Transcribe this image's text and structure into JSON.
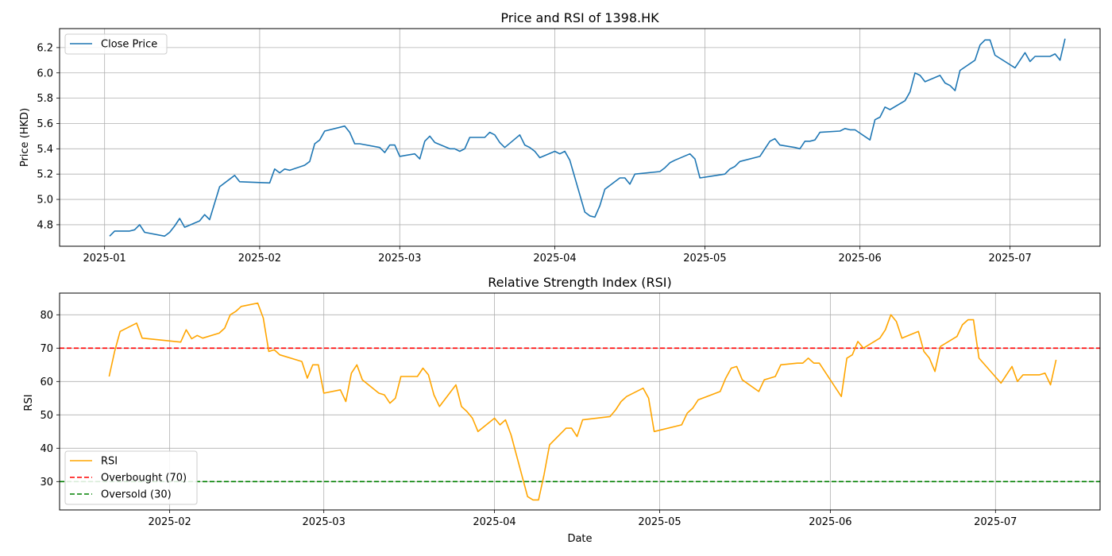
{
  "chart_data": [
    {
      "type": "line",
      "title": "Price and RSI of 1398.HK",
      "xlabel": "",
      "ylabel": "Price (HKD)",
      "ylim": [
        4.63,
        6.35
      ],
      "xlim": [
        "2024-12-23",
        "2025-07-19"
      ],
      "y_ticks": [
        "4.8",
        "5.0",
        "5.2",
        "5.4",
        "5.6",
        "5.8",
        "6.0",
        "6.2"
      ],
      "x_ticks": [
        "2025-01",
        "2025-02",
        "2025-03",
        "2025-04",
        "2025-05",
        "2025-06",
        "2025-07"
      ],
      "grid": true,
      "legend_position": "upper-left",
      "legend": [
        "Close Price"
      ],
      "series": [
        {
          "name": "Close Price",
          "color": "#1f77b4",
          "points": [
            [
              "2025-01-02",
              4.71
            ],
            [
              "2025-01-03",
              4.75
            ],
            [
              "2025-01-06",
              4.75
            ],
            [
              "2025-01-07",
              4.76
            ],
            [
              "2025-01-08",
              4.8
            ],
            [
              "2025-01-09",
              4.74
            ],
            [
              "2025-01-13",
              4.71
            ],
            [
              "2025-01-14",
              4.74
            ],
            [
              "2025-01-15",
              4.79
            ],
            [
              "2025-01-16",
              4.85
            ],
            [
              "2025-01-17",
              4.78
            ],
            [
              "2025-01-20",
              4.83
            ],
            [
              "2025-01-21",
              4.88
            ],
            [
              "2025-01-22",
              4.84
            ],
            [
              "2025-01-24",
              5.1
            ],
            [
              "2025-01-27",
              5.19
            ],
            [
              "2025-01-28",
              5.14
            ],
            [
              "2025-02-03",
              5.13
            ],
            [
              "2025-02-04",
              5.24
            ],
            [
              "2025-02-05",
              5.21
            ],
            [
              "2025-02-06",
              5.24
            ],
            [
              "2025-02-07",
              5.23
            ],
            [
              "2025-02-10",
              5.27
            ],
            [
              "2025-02-11",
              5.3
            ],
            [
              "2025-02-12",
              5.44
            ],
            [
              "2025-02-13",
              5.47
            ],
            [
              "2025-02-14",
              5.54
            ],
            [
              "2025-02-17",
              5.57
            ],
            [
              "2025-02-18",
              5.58
            ],
            [
              "2025-02-19",
              5.53
            ],
            [
              "2025-02-20",
              5.44
            ],
            [
              "2025-02-21",
              5.44
            ],
            [
              "2025-02-25",
              5.41
            ],
            [
              "2025-02-26",
              5.37
            ],
            [
              "2025-02-27",
              5.43
            ],
            [
              "2025-02-28",
              5.43
            ],
            [
              "2025-03-01",
              5.34
            ],
            [
              "2025-03-04",
              5.36
            ],
            [
              "2025-03-05",
              5.32
            ],
            [
              "2025-03-06",
              5.46
            ],
            [
              "2025-03-07",
              5.5
            ],
            [
              "2025-03-08",
              5.45
            ],
            [
              "2025-03-11",
              5.4
            ],
            [
              "2025-03-12",
              5.4
            ],
            [
              "2025-03-13",
              5.38
            ],
            [
              "2025-03-14",
              5.4
            ],
            [
              "2025-03-15",
              5.49
            ],
            [
              "2025-03-18",
              5.49
            ],
            [
              "2025-03-19",
              5.53
            ],
            [
              "2025-03-20",
              5.51
            ],
            [
              "2025-03-21",
              5.45
            ],
            [
              "2025-03-22",
              5.41
            ],
            [
              "2025-03-25",
              5.51
            ],
            [
              "2025-03-26",
              5.43
            ],
            [
              "2025-03-27",
              5.41
            ],
            [
              "2025-03-28",
              5.38
            ],
            [
              "2025-03-29",
              5.33
            ],
            [
              "2025-04-01",
              5.38
            ],
            [
              "2025-04-02",
              5.36
            ],
            [
              "2025-04-03",
              5.38
            ],
            [
              "2025-04-04",
              5.31
            ],
            [
              "2025-04-07",
              4.9
            ],
            [
              "2025-04-08",
              4.87
            ],
            [
              "2025-04-09",
              4.86
            ],
            [
              "2025-04-10",
              4.95
            ],
            [
              "2025-04-11",
              5.08
            ],
            [
              "2025-04-14",
              5.17
            ],
            [
              "2025-04-15",
              5.17
            ],
            [
              "2025-04-16",
              5.12
            ],
            [
              "2025-04-17",
              5.2
            ],
            [
              "2025-04-22",
              5.22
            ],
            [
              "2025-04-23",
              5.25
            ],
            [
              "2025-04-24",
              5.29
            ],
            [
              "2025-04-25",
              5.31
            ],
            [
              "2025-04-28",
              5.36
            ],
            [
              "2025-04-29",
              5.32
            ],
            [
              "2025-04-30",
              5.17
            ],
            [
              "2025-05-05",
              5.2
            ],
            [
              "2025-05-06",
              5.24
            ],
            [
              "2025-05-07",
              5.26
            ],
            [
              "2025-05-08",
              5.3
            ],
            [
              "2025-05-12",
              5.34
            ],
            [
              "2025-05-13",
              5.4
            ],
            [
              "2025-05-14",
              5.46
            ],
            [
              "2025-05-15",
              5.48
            ],
            [
              "2025-05-16",
              5.43
            ],
            [
              "2025-05-19",
              5.41
            ],
            [
              "2025-05-20",
              5.4
            ],
            [
              "2025-05-21",
              5.46
            ],
            [
              "2025-05-22",
              5.46
            ],
            [
              "2025-05-23",
              5.47
            ],
            [
              "2025-05-24",
              5.53
            ],
            [
              "2025-05-28",
              5.54
            ],
            [
              "2025-05-29",
              5.56
            ],
            [
              "2025-05-30",
              5.55
            ],
            [
              "2025-05-31",
              5.55
            ],
            [
              "2025-06-03",
              5.47
            ],
            [
              "2025-06-04",
              5.63
            ],
            [
              "2025-06-05",
              5.65
            ],
            [
              "2025-06-06",
              5.73
            ],
            [
              "2025-06-07",
              5.71
            ],
            [
              "2025-06-10",
              5.78
            ],
            [
              "2025-06-11",
              5.85
            ],
            [
              "2025-06-12",
              6.0
            ],
            [
              "2025-06-13",
              5.98
            ],
            [
              "2025-06-14",
              5.93
            ],
            [
              "2025-06-17",
              5.98
            ],
            [
              "2025-06-18",
              5.92
            ],
            [
              "2025-06-19",
              5.9
            ],
            [
              "2025-06-20",
              5.86
            ],
            [
              "2025-06-21",
              6.02
            ],
            [
              "2025-06-24",
              6.1
            ],
            [
              "2025-06-25",
              6.22
            ],
            [
              "2025-06-26",
              6.26
            ],
            [
              "2025-06-27",
              6.26
            ],
            [
              "2025-06-28",
              6.14
            ],
            [
              "2025-07-02",
              6.04
            ],
            [
              "2025-07-04",
              6.16
            ],
            [
              "2025-07-05",
              6.09
            ],
            [
              "2025-07-06",
              6.13
            ],
            [
              "2025-07-09",
              6.13
            ],
            [
              "2025-07-10",
              6.15
            ],
            [
              "2025-07-11",
              6.1
            ],
            [
              "2025-07-12",
              6.27
            ]
          ]
        }
      ]
    },
    {
      "type": "line",
      "title": "Relative Strength Index (RSI)",
      "xlabel": "Date",
      "ylabel": "RSI",
      "ylim": [
        21.5,
        86.5
      ],
      "xlim": [
        "2025-01-12",
        "2025-07-20"
      ],
      "y_ticks": [
        "30",
        "40",
        "50",
        "60",
        "70",
        "80"
      ],
      "x_ticks": [
        "2025-02",
        "2025-03",
        "2025-04",
        "2025-05",
        "2025-06",
        "2025-07"
      ],
      "grid": true,
      "legend_position": "lower-left",
      "legend": [
        "RSI",
        "Overbought (70)",
        "Oversold (30)"
      ],
      "hlines": [
        {
          "name": "Overbought (70)",
          "y": 70,
          "color": "#ff0000",
          "style": "dashed"
        },
        {
          "name": "Oversold (30)",
          "y": 30,
          "color": "#008000",
          "style": "dashed"
        }
      ],
      "series": [
        {
          "name": "RSI",
          "color": "#ffa500",
          "points": [
            [
              "2025-01-21",
              61.5
            ],
            [
              "2025-01-22",
              69.0
            ],
            [
              "2025-01-23",
              75.0
            ],
            [
              "2025-01-26",
              77.5
            ],
            [
              "2025-01-27",
              73.0
            ],
            [
              "2025-02-03",
              71.8
            ],
            [
              "2025-02-04",
              75.5
            ],
            [
              "2025-02-05",
              72.8
            ],
            [
              "2025-02-06",
              73.8
            ],
            [
              "2025-02-07",
              73.0
            ],
            [
              "2025-02-10",
              74.5
            ],
            [
              "2025-02-11",
              76.0
            ],
            [
              "2025-02-12",
              80.0
            ],
            [
              "2025-02-13",
              81.0
            ],
            [
              "2025-02-14",
              82.5
            ],
            [
              "2025-02-17",
              83.5
            ],
            [
              "2025-02-18",
              79.0
            ],
            [
              "2025-02-19",
              69.0
            ],
            [
              "2025-02-20",
              69.5
            ],
            [
              "2025-02-21",
              68.0
            ],
            [
              "2025-02-25",
              66.0
            ],
            [
              "2025-02-26",
              61.0
            ],
            [
              "2025-02-27",
              65.0
            ],
            [
              "2025-02-28",
              65.0
            ],
            [
              "2025-03-01",
              56.5
            ],
            [
              "2025-03-04",
              57.5
            ],
            [
              "2025-03-05",
              54.0
            ],
            [
              "2025-03-06",
              62.5
            ],
            [
              "2025-03-07",
              65.0
            ],
            [
              "2025-03-08",
              60.5
            ],
            [
              "2025-03-11",
              56.5
            ],
            [
              "2025-03-12",
              56.0
            ],
            [
              "2025-03-13",
              53.5
            ],
            [
              "2025-03-14",
              55.0
            ],
            [
              "2025-03-15",
              61.5
            ],
            [
              "2025-03-18",
              61.5
            ],
            [
              "2025-03-19",
              64.0
            ],
            [
              "2025-03-20",
              62.0
            ],
            [
              "2025-03-21",
              56.0
            ],
            [
              "2025-03-22",
              52.5
            ],
            [
              "2025-03-25",
              59.0
            ],
            [
              "2025-03-26",
              52.5
            ],
            [
              "2025-03-27",
              51.0
            ],
            [
              "2025-03-28",
              49.0
            ],
            [
              "2025-03-29",
              45.0
            ],
            [
              "2025-04-01",
              49.0
            ],
            [
              "2025-04-02",
              47.0
            ],
            [
              "2025-04-03",
              48.5
            ],
            [
              "2025-04-04",
              44.0
            ],
            [
              "2025-04-07",
              25.5
            ],
            [
              "2025-04-08",
              24.5
            ],
            [
              "2025-04-09",
              24.5
            ],
            [
              "2025-04-10",
              32.0
            ],
            [
              "2025-04-11",
              41.0
            ],
            [
              "2025-04-14",
              46.0
            ],
            [
              "2025-04-15",
              46.0
            ],
            [
              "2025-04-16",
              43.5
            ],
            [
              "2025-04-17",
              48.5
            ],
            [
              "2025-04-22",
              49.5
            ],
            [
              "2025-04-23",
              51.5
            ],
            [
              "2025-04-24",
              54.0
            ],
            [
              "2025-04-25",
              55.5
            ],
            [
              "2025-04-28",
              58.0
            ],
            [
              "2025-04-29",
              55.0
            ],
            [
              "2025-04-30",
              45.0
            ],
            [
              "2025-05-05",
              47.0
            ],
            [
              "2025-05-06",
              50.5
            ],
            [
              "2025-05-07",
              52.0
            ],
            [
              "2025-05-08",
              54.5
            ],
            [
              "2025-05-12",
              57.0
            ],
            [
              "2025-05-13",
              61.0
            ],
            [
              "2025-05-14",
              64.0
            ],
            [
              "2025-05-15",
              64.5
            ],
            [
              "2025-05-16",
              60.5
            ],
            [
              "2025-05-19",
              57.0
            ],
            [
              "2025-05-20",
              60.5
            ],
            [
              "2025-05-21",
              61.0
            ],
            [
              "2025-05-22",
              61.5
            ],
            [
              "2025-05-23",
              65.0
            ],
            [
              "2025-05-26",
              65.5
            ],
            [
              "2025-05-27",
              65.5
            ],
            [
              "2025-05-28",
              67.0
            ],
            [
              "2025-05-29",
              65.5
            ],
            [
              "2025-05-30",
              65.5
            ],
            [
              "2025-06-03",
              55.5
            ],
            [
              "2025-06-04",
              67.0
            ],
            [
              "2025-06-05",
              68.0
            ],
            [
              "2025-06-06",
              72.0
            ],
            [
              "2025-06-07",
              70.0
            ],
            [
              "2025-06-10",
              73.0
            ],
            [
              "2025-06-11",
              75.5
            ],
            [
              "2025-06-12",
              80.0
            ],
            [
              "2025-06-13",
              78.0
            ],
            [
              "2025-06-14",
              73.0
            ],
            [
              "2025-06-17",
              75.0
            ],
            [
              "2025-06-18",
              69.0
            ],
            [
              "2025-06-19",
              67.0
            ],
            [
              "2025-06-20",
              63.0
            ],
            [
              "2025-06-21",
              70.5
            ],
            [
              "2025-06-24",
              73.5
            ],
            [
              "2025-06-25",
              77.0
            ],
            [
              "2025-06-26",
              78.5
            ],
            [
              "2025-06-27",
              78.5
            ],
            [
              "2025-06-28",
              67.0
            ],
            [
              "2025-07-02",
              59.5
            ],
            [
              "2025-07-04",
              64.5
            ],
            [
              "2025-07-05",
              60.0
            ],
            [
              "2025-07-06",
              62.0
            ],
            [
              "2025-07-09",
              62.0
            ],
            [
              "2025-07-10",
              62.5
            ],
            [
              "2025-07-11",
              59.0
            ],
            [
              "2025-07-12",
              66.5
            ]
          ]
        }
      ]
    }
  ]
}
